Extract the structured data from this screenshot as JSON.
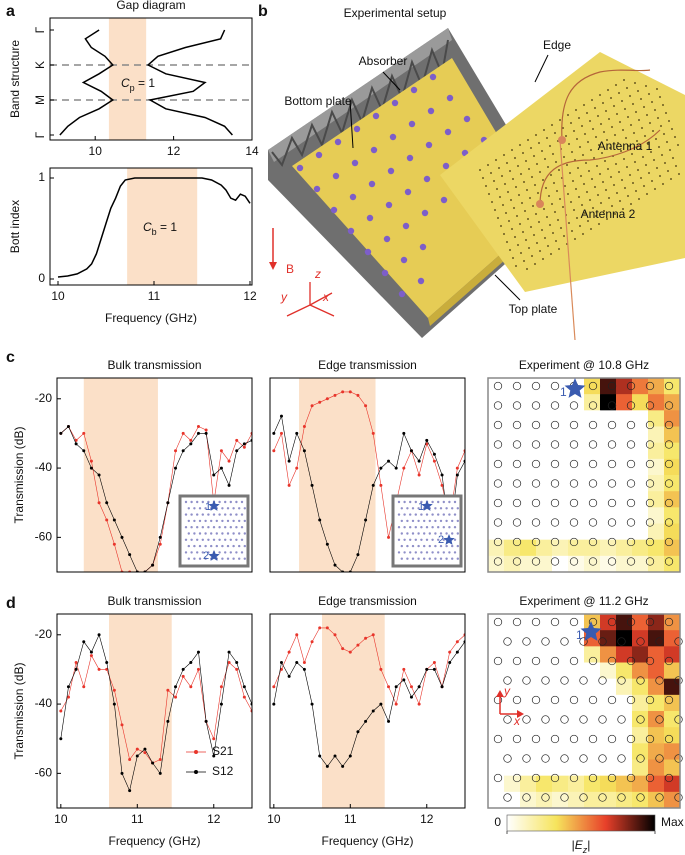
{
  "panel_labels": [
    "a",
    "b",
    "c",
    "d"
  ],
  "setup": {
    "title": "Experimental setup",
    "labels": {
      "absorber": "Absorber",
      "edge": "Edge",
      "bottom_plate": "Bottom plate",
      "antenna1": "Antenna 1",
      "antenna2": "Antenna 2",
      "top_plate": "Top plate",
      "field": "B",
      "z": "z",
      "y": "y",
      "x": "x"
    }
  },
  "chart_data": [
    {
      "type": "band",
      "title": "Gap diagram",
      "ylabel": "Band structure",
      "xlim": [
        9,
        14
      ],
      "ylim": [
        3,
        0
      ],
      "xticks": [
        10,
        12,
        14
      ],
      "yticks": [
        {
          "value": 0,
          "label": "Γ"
        },
        {
          "value": 1,
          "label": "K"
        },
        {
          "value": 2,
          "label": "M"
        },
        {
          "value": 3,
          "label": "Γ"
        }
      ],
      "hlines": [
        1,
        2
      ],
      "shade": [
        10.35,
        11.3
      ],
      "shade_color": "#fbe0c8",
      "annotation": {
        "symbol": "C",
        "sub": "p",
        "rest": " = 1"
      },
      "series": [
        {
          "color": "#000000",
          "x": [
            10.1,
            9.75,
            9.9,
            10.25,
            10.45,
            10.1,
            9.7,
            10.15,
            10.45,
            10.1,
            9.6,
            9.3,
            9.1
          ],
          "values": [
            0,
            0.25,
            0.5,
            0.75,
            1,
            1.25,
            1.5,
            1.75,
            2,
            2.25,
            2.5,
            2.75,
            3
          ]
        },
        {
          "color": "#000000",
          "x": [
            13.3,
            13.2,
            12.3,
            11.6,
            11.35,
            11.8,
            12.8,
            12.5,
            11.4,
            11.8,
            12.8,
            13.3,
            13.5
          ],
          "values": [
            0,
            0.25,
            0.5,
            0.75,
            1,
            1.25,
            1.5,
            1.75,
            2,
            2.25,
            2.5,
            2.75,
            3
          ]
        }
      ]
    },
    {
      "type": "line",
      "ylabel": "Bott index",
      "xlabel": "Frequency (GHz)",
      "xlim": [
        10,
        12
      ],
      "ylim": [
        0,
        1
      ],
      "xticks": [
        10,
        11,
        12
      ],
      "yticks": [
        0,
        1
      ],
      "shade": [
        10.72,
        11.45
      ],
      "shade_color": "#fbe0c8",
      "annotation": {
        "symbol": "C",
        "sub": "b",
        "rest": " = 1"
      },
      "x": [
        10,
        10.1,
        10.2,
        10.3,
        10.35,
        10.4,
        10.45,
        10.5,
        10.55,
        10.6,
        10.65,
        10.7,
        10.8,
        11,
        11.2,
        11.4,
        11.5,
        11.6,
        11.7,
        11.75,
        11.8,
        11.85,
        11.9,
        11.95,
        12
      ],
      "series": [
        {
          "color": "#000000",
          "values": [
            0.02,
            0.03,
            0.05,
            0.1,
            0.15,
            0.25,
            0.4,
            0.55,
            0.7,
            0.8,
            0.92,
            0.98,
            1,
            1,
            1,
            1,
            1,
            0.98,
            0.93,
            0.88,
            0.8,
            0.78,
            0.84,
            0.82,
            0.75
          ]
        }
      ]
    },
    {
      "type": "line",
      "title": "Bulk transmission",
      "ylabel": "Transmission (dB)",
      "xlim": [
        9.95,
        12.5
      ],
      "ylim": [
        -70,
        -14
      ],
      "yticks": [
        -20,
        -40,
        -60
      ],
      "markers": true,
      "shade": [
        10.3,
        11.27
      ],
      "shade_color": "#fbe0c8",
      "inset": {
        "labels": [
          "1",
          "2"
        ]
      },
      "x": [
        10,
        10.1,
        10.2,
        10.3,
        10.4,
        10.5,
        10.6,
        10.7,
        10.8,
        10.9,
        11,
        11.1,
        11.2,
        11.3,
        11.4,
        11.5,
        11.6,
        11.7,
        11.8,
        11.9,
        12,
        12.1,
        12.2,
        12.3,
        12.4,
        12.5
      ],
      "series": [
        {
          "name": "S21",
          "color": "#e8352b",
          "values": [
            -30,
            -28,
            -32,
            -30,
            -38,
            -50,
            -55,
            -62,
            -70,
            -70,
            -70,
            -70,
            -68,
            -62,
            -50,
            -35,
            -30,
            -32,
            -28,
            -29,
            -50,
            -35,
            -38,
            -32,
            -34,
            -30
          ]
        },
        {
          "name": "S12",
          "color": "#000000",
          "values": [
            -30,
            -28,
            -33,
            -35,
            -40,
            -42,
            -50,
            -55,
            -60,
            -65,
            -70,
            -70,
            -68,
            -60,
            -50,
            -40,
            -35,
            -33,
            -30,
            -30,
            -42,
            -40,
            -45,
            -35,
            -33,
            -32
          ]
        }
      ]
    },
    {
      "type": "line",
      "title": "Edge transmission",
      "xlim": [
        9.95,
        12.5
      ],
      "ylim": [
        -70,
        -14
      ],
      "markers": true,
      "shade": [
        10.33,
        11.33
      ],
      "shade_color": "#fbe0c8",
      "inset": {
        "labels": [
          "1",
          "2"
        ]
      },
      "x": [
        10,
        10.1,
        10.2,
        10.3,
        10.4,
        10.5,
        10.6,
        10.7,
        10.8,
        10.9,
        11,
        11.1,
        11.2,
        11.3,
        11.4,
        11.5,
        11.6,
        11.7,
        11.8,
        11.9,
        12,
        12.1,
        12.2,
        12.3,
        12.4,
        12.5
      ],
      "series": [
        {
          "name": "S21",
          "color": "#e8352b",
          "values": [
            -35,
            -30,
            -45,
            -40,
            -28,
            -22,
            -21,
            -20,
            -19,
            -18,
            -18,
            -19,
            -22,
            -30,
            -45,
            -60,
            -50,
            -40,
            -35,
            -42,
            -33,
            -38,
            -45,
            -55,
            -40,
            -35
          ]
        },
        {
          "name": "S12",
          "color": "#000000",
          "values": [
            -30,
            -25,
            -38,
            -30,
            -35,
            -45,
            -55,
            -62,
            -68,
            -70,
            -70,
            -65,
            -55,
            -45,
            -40,
            -38,
            -40,
            -30,
            -35,
            -38,
            -32,
            -36,
            -42,
            -60,
            -42,
            -38
          ]
        }
      ]
    },
    {
      "type": "heatmap",
      "title": "Experiment @ 10.8 GHz",
      "zlim": [
        0,
        1
      ],
      "colormap": [
        "#ffffff",
        "#f6e45c",
        "#e8402a",
        "#000000"
      ],
      "source_label": "1",
      "values": [
        [
          0,
          0,
          0,
          0,
          0,
          0,
          0.35,
          0.9,
          0.75,
          0.55,
          0.45,
          0.3
        ],
        [
          0,
          0,
          0,
          0,
          0,
          0,
          0.2,
          1,
          0.6,
          0.35,
          0.55,
          0.45
        ],
        [
          0,
          0,
          0,
          0,
          0,
          0,
          0,
          0,
          0,
          0,
          0.25,
          0.5
        ],
        [
          0,
          0,
          0,
          0,
          0,
          0,
          0,
          0,
          0,
          0,
          0.15,
          0.4
        ],
        [
          0,
          0,
          0,
          0,
          0,
          0,
          0,
          0,
          0,
          0,
          0.2,
          0.3
        ],
        [
          0,
          0,
          0,
          0,
          0,
          0,
          0,
          0,
          0,
          0,
          0.1,
          0.35
        ],
        [
          0,
          0,
          0,
          0,
          0,
          0,
          0,
          0,
          0,
          0,
          0.15,
          0.3
        ],
        [
          0,
          0,
          0,
          0,
          0,
          0,
          0,
          0,
          0,
          0,
          0.2,
          0.4
        ],
        [
          0,
          0,
          0,
          0,
          0,
          0,
          0,
          0,
          0,
          0,
          0.1,
          0.3
        ],
        [
          0,
          0,
          0,
          0,
          0,
          0,
          0,
          0,
          0,
          0,
          0.15,
          0.35
        ],
        [
          0.15,
          0.25,
          0.3,
          0.2,
          0.15,
          0.2,
          0.2,
          0.15,
          0.2,
          0.25,
          0.3,
          0.4
        ],
        [
          0.1,
          0.15,
          0.1,
          0.1,
          0,
          0.05,
          0.1,
          0.05,
          0.1,
          0.1,
          0.2,
          0.3
        ]
      ]
    },
    {
      "type": "line",
      "title": "Bulk transmission",
      "ylabel": "Transmission (dB)",
      "xlabel": "Frequency (GHz)",
      "xlim": [
        9.95,
        12.5
      ],
      "ylim": [
        -70,
        -14
      ],
      "xticks": [
        10,
        11,
        12
      ],
      "yticks": [
        -20,
        -40,
        -60
      ],
      "markers": true,
      "legend": "lower right",
      "shade": [
        10.63,
        11.45
      ],
      "shade_color": "#fbe0c8",
      "x": [
        10,
        10.1,
        10.2,
        10.3,
        10.4,
        10.5,
        10.6,
        10.7,
        10.8,
        10.9,
        11,
        11.1,
        11.2,
        11.3,
        11.4,
        11.5,
        11.6,
        11.7,
        11.8,
        11.9,
        12,
        12.1,
        12.2,
        12.3,
        12.4,
        12.5
      ],
      "series": [
        {
          "name": "S21",
          "color": "#e8352b",
          "values": [
            -42,
            -38,
            -28,
            -35,
            -26,
            -30,
            -30,
            -36,
            -46,
            -56,
            -53,
            -54,
            -57,
            -56,
            -36,
            -38,
            -32,
            -35,
            -30,
            -45,
            -50,
            -35,
            -28,
            -30,
            -38,
            -42
          ]
        },
        {
          "name": "S12",
          "color": "#000000",
          "values": [
            -50,
            -35,
            -30,
            -22,
            -25,
            -20,
            -28,
            -40,
            -60,
            -65,
            -55,
            -53,
            -57,
            -60,
            -45,
            -35,
            -30,
            -28,
            -25,
            -45,
            -55,
            -40,
            -25,
            -28,
            -35,
            -40
          ]
        }
      ]
    },
    {
      "type": "line",
      "title": "Edge transmission",
      "xlabel": "Frequency (GHz)",
      "xlim": [
        9.95,
        12.5
      ],
      "ylim": [
        -70,
        -14
      ],
      "xticks": [
        10,
        11,
        12
      ],
      "markers": true,
      "shade": [
        10.63,
        11.45
      ],
      "shade_color": "#fbe0c8",
      "x": [
        10,
        10.1,
        10.2,
        10.3,
        10.4,
        10.5,
        10.6,
        10.7,
        10.8,
        10.9,
        11,
        11.1,
        11.2,
        11.3,
        11.4,
        11.5,
        11.6,
        11.7,
        11.8,
        11.9,
        12,
        12.1,
        12.2,
        12.3,
        12.4,
        12.5
      ],
      "series": [
        {
          "name": "S21",
          "color": "#e8352b",
          "values": [
            -35,
            -30,
            -25,
            -20,
            -28,
            -22,
            -18,
            -18,
            -20,
            -24,
            -25,
            -23,
            -21,
            -20,
            -30,
            -35,
            -40,
            -30,
            -35,
            -40,
            -30,
            -28,
            -35,
            -25,
            -22,
            -20
          ]
        },
        {
          "name": "S12",
          "color": "#000000",
          "values": [
            -40,
            -28,
            -32,
            -28,
            -30,
            -40,
            -55,
            -58,
            -55,
            -58,
            -55,
            -48,
            -45,
            -42,
            -40,
            -45,
            -35,
            -33,
            -38,
            -35,
            -30,
            -30,
            -35,
            -28,
            -25,
            -22
          ]
        }
      ]
    },
    {
      "type": "heatmap",
      "title": "Experiment @ 11.2 GHz",
      "zlim": [
        0,
        1
      ],
      "colormap": [
        "#ffffff",
        "#f6e45c",
        "#e8402a",
        "#000000"
      ],
      "source_label": "1",
      "axis_labels": {
        "y": "y",
        "x": "x"
      },
      "colorbar": {
        "ticks": [
          0,
          {
            "value": 1,
            "label": "Max"
          }
        ],
        "label": {
          "pre": "|",
          "symbol": "E",
          "sub": "z",
          "post": "|"
        }
      },
      "values": [
        [
          0,
          0,
          0,
          0,
          0,
          0,
          0.4,
          0.7,
          0.9,
          0.6,
          0.8,
          0.5
        ],
        [
          0,
          0,
          0,
          0,
          0,
          0,
          0.6,
          0.85,
          1,
          0.7,
          0.9,
          0.6
        ],
        [
          0,
          0,
          0,
          0,
          0,
          0,
          0.2,
          0.5,
          0.7,
          0.8,
          0.6,
          0.7
        ],
        [
          0,
          0,
          0,
          0,
          0,
          0,
          0,
          0.1,
          0.3,
          0.5,
          0.6,
          0.4
        ],
        [
          0,
          0,
          0,
          0,
          0,
          0,
          0,
          0,
          0.15,
          0.3,
          0.5,
          0.9
        ],
        [
          0,
          0,
          0,
          0,
          0,
          0,
          0,
          0,
          0,
          0.2,
          0.3,
          0.4
        ],
        [
          0,
          0,
          0,
          0,
          0,
          0,
          0,
          0,
          0,
          0.3,
          0.5,
          0.3
        ],
        [
          0,
          0,
          0,
          0,
          0,
          0,
          0,
          0,
          0,
          0.2,
          0.4,
          0.35
        ],
        [
          0,
          0,
          0,
          0,
          0,
          0,
          0,
          0,
          0,
          0.3,
          0.45,
          0.5
        ],
        [
          0,
          0,
          0,
          0,
          0,
          0,
          0,
          0,
          0,
          0.25,
          0.5,
          0.4
        ],
        [
          0,
          0.1,
          0.2,
          0.3,
          0.25,
          0.2,
          0.3,
          0.35,
          0.4,
          0.45,
          0.6,
          0.7
        ],
        [
          0,
          0,
          0.1,
          0.15,
          0.1,
          0.15,
          0.2,
          0.2,
          0.25,
          0.3,
          0.4,
          0.5
        ]
      ]
    }
  ]
}
